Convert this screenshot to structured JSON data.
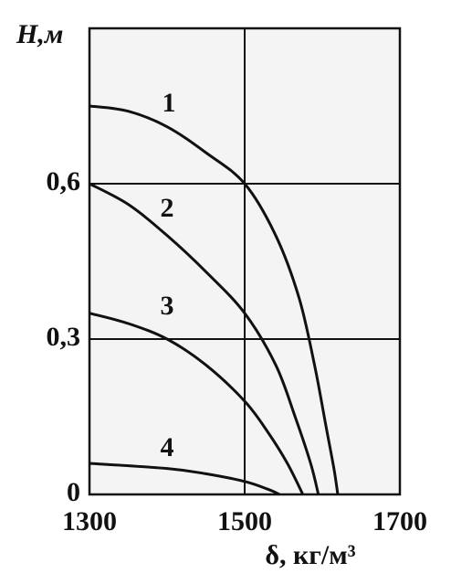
{
  "chart_data": {
    "type": "line",
    "x_label": "δ, кг/м³",
    "y_label": "H,м",
    "xlim": [
      1300,
      1700
    ],
    "xticks": [
      1300,
      1500,
      1700
    ],
    "ylim": [
      0,
      0.9
    ],
    "yticks": [
      0,
      {
        "value": 0.3,
        "label": "0,3"
      },
      {
        "value": 0.6,
        "label": "0,6"
      }
    ],
    "grid": true,
    "series": [
      {
        "name": "1",
        "color": "#111111",
        "x": [
          1300,
          1350,
          1400,
          1450,
          1500,
          1540,
          1570,
          1590,
          1605,
          1615,
          1620
        ],
        "values": [
          0.75,
          0.74,
          0.71,
          0.66,
          0.6,
          0.5,
          0.38,
          0.25,
          0.13,
          0.05,
          0
        ]
      },
      {
        "name": "2",
        "color": "#111111",
        "x": [
          1300,
          1350,
          1400,
          1450,
          1500,
          1540,
          1565,
          1585,
          1595
        ],
        "values": [
          0.6,
          0.56,
          0.5,
          0.43,
          0.35,
          0.25,
          0.15,
          0.06,
          0
        ]
      },
      {
        "name": "3",
        "color": "#111111",
        "x": [
          1300,
          1350,
          1400,
          1450,
          1500,
          1530,
          1555,
          1575
        ],
        "values": [
          0.35,
          0.33,
          0.3,
          0.25,
          0.18,
          0.12,
          0.06,
          0
        ]
      },
      {
        "name": "4",
        "color": "#111111",
        "x": [
          1300,
          1400,
          1450,
          1500,
          1530,
          1545
        ],
        "values": [
          0.06,
          0.05,
          0.04,
          0.025,
          0.01,
          0
        ]
      }
    ]
  }
}
